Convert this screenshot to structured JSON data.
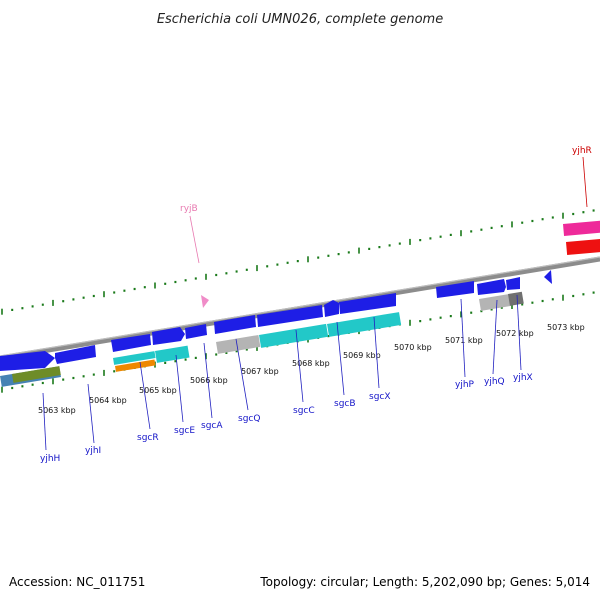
{
  "title": "Escherichia coli UMN026, complete genome",
  "footer": {
    "accession": "Accession: NC_011751",
    "summary": "Topology: circular; Length: 5,202,090 bp; Genes: 5,014"
  },
  "colors": {
    "forward_cds": "#1e1ee6",
    "cyan": "#22c8c8",
    "gray": "#b4b4b4",
    "dark_gray": "#707070",
    "olive": "#6e8c28",
    "steel": "#4682b4",
    "orange": "#ee8800",
    "pink": "#f08cc8",
    "magenta": "#ee2a9a",
    "red": "#ee1111",
    "tick": "#1a7a1a",
    "backbone": "#8c8c8c"
  },
  "kbp_labels": [
    "5063 kbp",
    "5064 kbp",
    "5065 kbp",
    "5066 kbp",
    "5067 kbp",
    "5068 kbp",
    "5069 kbp",
    "5070 kbp",
    "5071 kbp",
    "5072 kbp",
    "5073 kbp"
  ],
  "genes": [
    {
      "name": "yjhH",
      "style": "blue"
    },
    {
      "name": "yjhI",
      "style": "blue"
    },
    {
      "name": "sgcR",
      "style": "blue"
    },
    {
      "name": "sgcE",
      "style": "blue"
    },
    {
      "name": "sgcA",
      "style": "blue"
    },
    {
      "name": "sgcQ",
      "style": "blue"
    },
    {
      "name": "sgcC",
      "style": "blue"
    },
    {
      "name": "sgcB",
      "style": "blue"
    },
    {
      "name": "sgcX",
      "style": "blue"
    },
    {
      "name": "yjhP",
      "style": "blue"
    },
    {
      "name": "yjhQ",
      "style": "blue"
    },
    {
      "name": "yjhX",
      "style": "blue"
    },
    {
      "name": "ryjB",
      "style": "pink"
    },
    {
      "name": "yjhR",
      "style": "red"
    }
  ]
}
